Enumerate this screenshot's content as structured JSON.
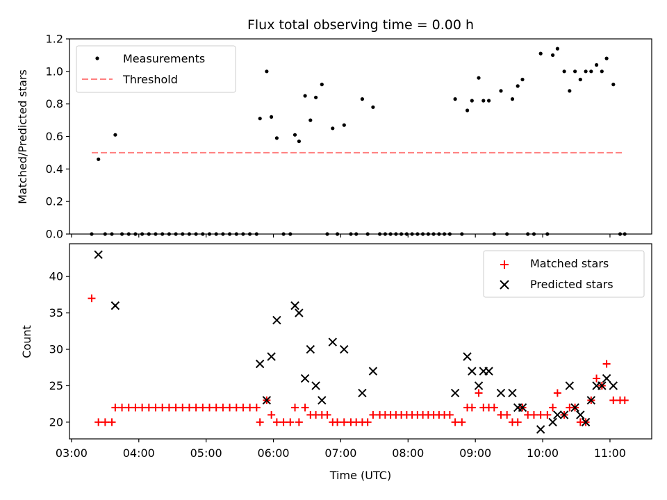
{
  "chart_data": [
    {
      "type": "scatter",
      "title": "Flux total observing time = 0.00 h",
      "xlabel": "",
      "ylabel": "Matched/Predicted stars",
      "ylim": [
        0,
        1.2
      ],
      "yticks": [
        "0.0",
        "0.2",
        "0.4",
        "0.6",
        "0.8",
        "1.0",
        "1.2"
      ],
      "grid": false,
      "legend_position": "upper-left",
      "colors": {
        "measurements": "#000000",
        "threshold": "#ff7f7f"
      },
      "series": [
        {
          "name": "Measurements",
          "x_hours": [
            3.3,
            3.4,
            3.5,
            3.6,
            3.65,
            3.75,
            3.85,
            3.95,
            4.05,
            4.15,
            4.25,
            4.35,
            4.45,
            4.55,
            4.65,
            4.75,
            4.85,
            4.95,
            5.05,
            5.15,
            5.25,
            5.35,
            5.45,
            5.55,
            5.65,
            5.75,
            5.8,
            5.9,
            5.97,
            6.05,
            6.15,
            6.25,
            6.32,
            6.38,
            6.47,
            6.55,
            6.63,
            6.72,
            6.8,
            6.88,
            6.95,
            7.05,
            7.15,
            7.23,
            7.32,
            7.4,
            7.48,
            7.58,
            7.66,
            7.74,
            7.82,
            7.9,
            7.98,
            8.06,
            8.14,
            8.22,
            8.3,
            8.38,
            8.46,
            8.54,
            8.62,
            8.7,
            8.8,
            8.88,
            8.95,
            9.05,
            9.12,
            9.2,
            9.28,
            9.38,
            9.47,
            9.55,
            9.63,
            9.7,
            9.78,
            9.87,
            9.97,
            10.07,
            10.15,
            10.22,
            10.32,
            10.4,
            10.48,
            10.56,
            10.64,
            10.72,
            10.8,
            10.88,
            10.95,
            11.05,
            11.15,
            11.22
          ],
          "y": [
            0,
            0.46,
            0,
            0,
            0.61,
            0,
            0,
            0,
            0,
            0,
            0,
            0,
            0,
            0,
            0,
            0,
            0,
            0,
            0,
            0,
            0,
            0,
            0,
            0,
            0,
            0,
            0.71,
            1.0,
            0.72,
            0.59,
            0,
            0,
            0.61,
            0.57,
            0.85,
            0.7,
            0.84,
            0.92,
            0,
            0.65,
            0,
            0.67,
            0,
            0,
            0.83,
            0,
            0.78,
            0,
            0,
            0,
            0,
            0,
            0,
            0,
            0,
            0,
            0,
            0,
            0,
            0,
            0,
            0.83,
            0,
            0.76,
            0.82,
            0.96,
            0.82,
            0.82,
            0,
            0.88,
            0,
            0.83,
            0.91,
            0.95,
            0,
            0,
            1.11,
            0,
            1.1,
            1.14,
            1.0,
            0.88,
            1.0,
            0.95,
            1.0,
            1.0,
            1.04,
            1.0,
            1.08,
            0.92,
            0,
            0
          ]
        },
        {
          "name": "Threshold",
          "x_hours": [
            3.3,
            11.2
          ],
          "y": [
            0.5,
            0.5
          ]
        }
      ]
    },
    {
      "type": "scatter",
      "title": "",
      "xlabel": "Time (UTC)",
      "ylabel": "Count",
      "ylim": [
        17.7,
        44.5
      ],
      "yticks": [
        "20",
        "25",
        "30",
        "35",
        "40"
      ],
      "x_tick_labels": [
        "03:00",
        "04:00",
        "05:00",
        "06:00",
        "07:00",
        "08:00",
        "09:00",
        "10:00",
        "11:00"
      ],
      "xlim_hours": [
        2.97,
        11.62
      ],
      "grid": false,
      "legend_position": "upper-right",
      "colors": {
        "matched": "#ff0000",
        "predicted": "#000000"
      },
      "series": [
        {
          "name": "Matched stars",
          "x_hours": [
            3.3,
            3.4,
            3.5,
            3.6,
            3.65,
            3.75,
            3.85,
            3.95,
            4.05,
            4.15,
            4.25,
            4.35,
            4.45,
            4.55,
            4.65,
            4.75,
            4.85,
            4.95,
            5.05,
            5.15,
            5.25,
            5.35,
            5.45,
            5.55,
            5.65,
            5.75,
            5.8,
            5.9,
            5.97,
            6.05,
            6.15,
            6.25,
            6.32,
            6.38,
            6.47,
            6.55,
            6.63,
            6.72,
            6.8,
            6.88,
            6.95,
            7.05,
            7.15,
            7.23,
            7.32,
            7.4,
            7.48,
            7.58,
            7.66,
            7.74,
            7.82,
            7.9,
            7.98,
            8.06,
            8.14,
            8.22,
            8.3,
            8.38,
            8.46,
            8.54,
            8.62,
            8.7,
            8.8,
            8.88,
            8.95,
            9.05,
            9.12,
            9.2,
            9.28,
            9.38,
            9.47,
            9.55,
            9.63,
            9.7,
            9.78,
            9.87,
            9.97,
            10.07,
            10.15,
            10.22,
            10.32,
            10.4,
            10.48,
            10.56,
            10.64,
            10.72,
            10.8,
            10.88,
            10.95,
            11.05,
            11.15,
            11.22
          ],
          "y": [
            37,
            20,
            20,
            20,
            22,
            22,
            22,
            22,
            22,
            22,
            22,
            22,
            22,
            22,
            22,
            22,
            22,
            22,
            22,
            22,
            22,
            22,
            22,
            22,
            22,
            22,
            20,
            23,
            21,
            20,
            20,
            20,
            22,
            20,
            22,
            21,
            21,
            21,
            21,
            20,
            20,
            20,
            20,
            20,
            20,
            20,
            21,
            21,
            21,
            21,
            21,
            21,
            21,
            21,
            21,
            21,
            21,
            21,
            21,
            21,
            21,
            20,
            20,
            22,
            22,
            24,
            22,
            22,
            22,
            21,
            21,
            20,
            20,
            22,
            21,
            21,
            21,
            21,
            22,
            24,
            21,
            22,
            22,
            20,
            20,
            23,
            26,
            25,
            28,
            23,
            23,
            23
          ]
        },
        {
          "name": "Predicted stars",
          "x_hours": [
            3.4,
            3.65,
            5.8,
            5.9,
            5.97,
            6.05,
            6.32,
            6.38,
            6.47,
            6.55,
            6.63,
            6.72,
            6.88,
            7.05,
            7.32,
            7.48,
            8.7,
            8.88,
            8.95,
            9.05,
            9.12,
            9.2,
            9.38,
            9.55,
            9.63,
            9.7,
            9.97,
            10.15,
            10.22,
            10.32,
            10.4,
            10.48,
            10.56,
            10.64,
            10.72,
            10.8,
            10.88,
            10.95,
            11.05
          ],
          "y": [
            43,
            36,
            28,
            23,
            29,
            34,
            36,
            35,
            26,
            30,
            25,
            23,
            31,
            30,
            24,
            27,
            24,
            29,
            27,
            25,
            27,
            27,
            24,
            24,
            22,
            22,
            19,
            20,
            21,
            21,
            25,
            22,
            21,
            20,
            23,
            25,
            25,
            26,
            25
          ]
        }
      ]
    }
  ]
}
